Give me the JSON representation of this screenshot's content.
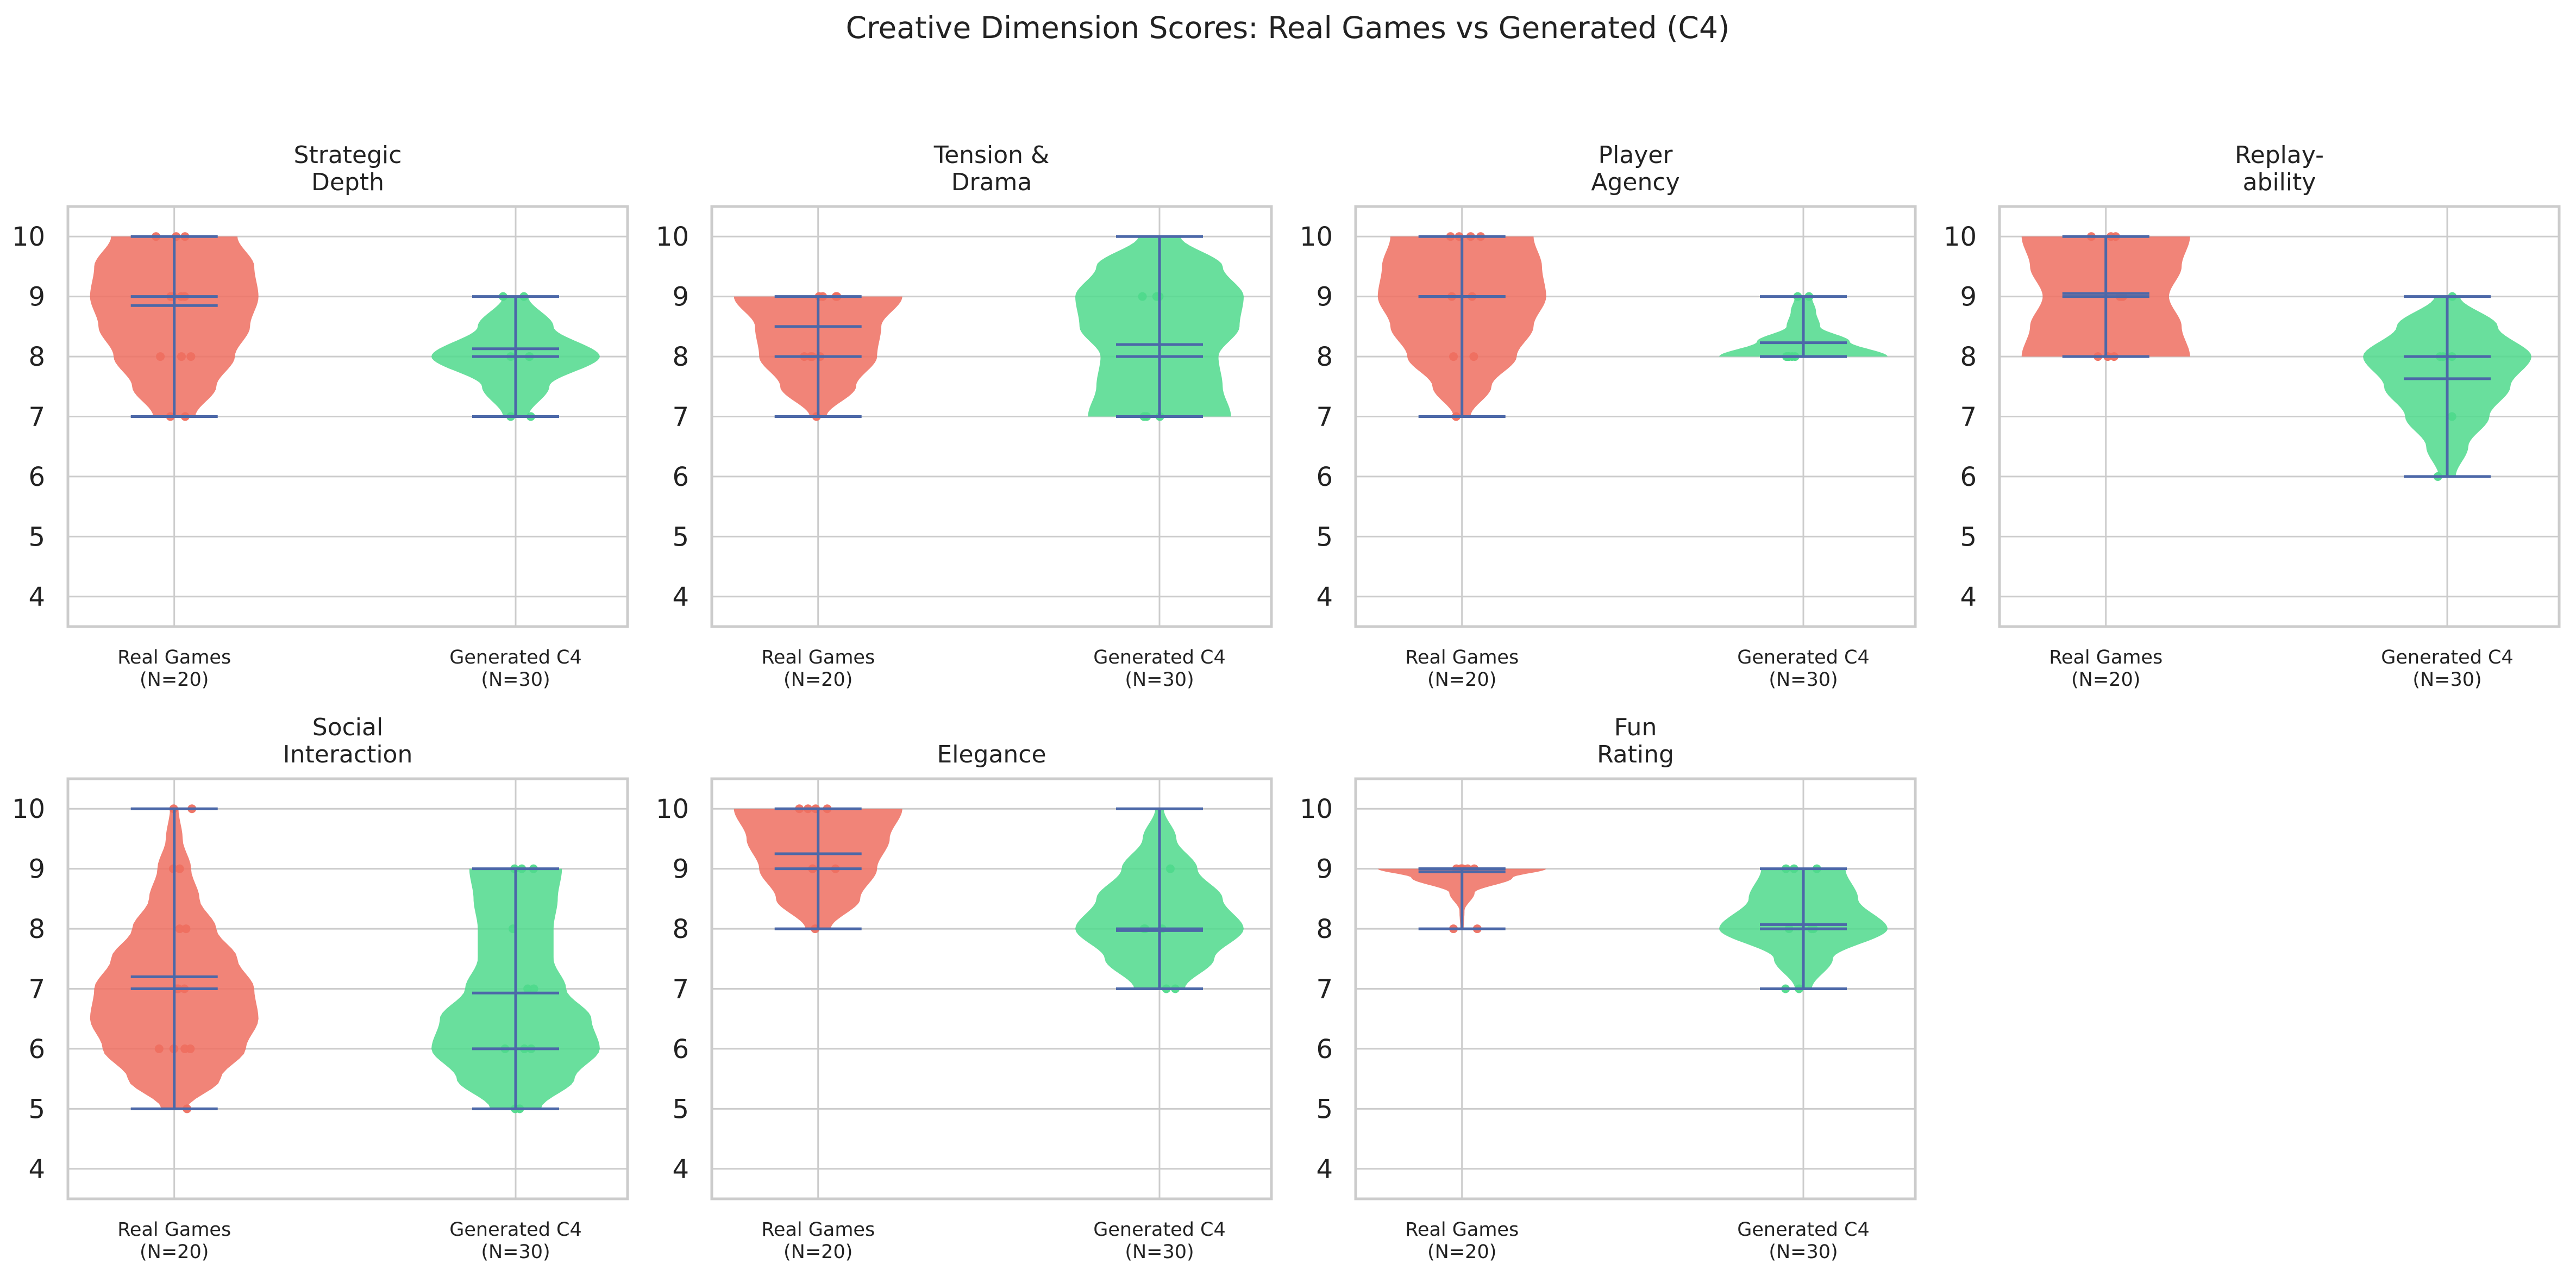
{
  "figure_title": "Creative Dimension Scores: Real Games vs Generated (C4)",
  "colors": {
    "real": "#ee6f60",
    "generated": "#4fd98c",
    "stat_lines": "#4c68a8",
    "grid": "#cccccc",
    "frame": "#cccccc"
  },
  "chart_data": [
    {
      "type": "violin",
      "title": "Strategic\nDepth",
      "categories": [
        "Real Games\n(N=20)",
        "Generated C4\n(N=30)"
      ],
      "ylim": [
        3.5,
        10.5
      ],
      "yticks": [
        4,
        5,
        6,
        7,
        8,
        9,
        10
      ],
      "grid": true,
      "series": [
        {
          "name": "Real Games",
          "min": 7,
          "max": 10,
          "mean": 8.85,
          "median": 9,
          "density": [
            [
              7,
              0.25
            ],
            [
              7.5,
              0.5
            ],
            [
              8,
              0.72
            ],
            [
              8.5,
              0.9
            ],
            [
              9,
              1.0
            ],
            [
              9.5,
              0.95
            ],
            [
              10,
              0.75
            ]
          ],
          "points": [
            7,
            7,
            8,
            8,
            8,
            9,
            9,
            9,
            9,
            10,
            10,
            10
          ]
        },
        {
          "name": "Generated C4",
          "min": 7,
          "max": 9,
          "mean": 8.13,
          "median": 8,
          "density": [
            [
              7,
              0.15
            ],
            [
              7.5,
              0.4
            ],
            [
              8,
              1.0
            ],
            [
              8.5,
              0.45
            ],
            [
              9,
              0.15
            ]
          ],
          "points": [
            7,
            7,
            8,
            8,
            8,
            9,
            9
          ]
        }
      ]
    },
    {
      "type": "violin",
      "title": "Tension &\nDrama",
      "categories": [
        "Real Games\n(N=20)",
        "Generated C4\n(N=30)"
      ],
      "ylim": [
        3.5,
        10.5
      ],
      "yticks": [
        4,
        5,
        6,
        7,
        8,
        9,
        10
      ],
      "grid": true,
      "series": [
        {
          "name": "Real Games",
          "min": 7,
          "max": 9,
          "mean": 8.5,
          "median": 8,
          "density": [
            [
              7,
              0.1
            ],
            [
              7.5,
              0.45
            ],
            [
              8,
              0.7
            ],
            [
              8.5,
              0.75
            ],
            [
              9,
              1.0
            ]
          ],
          "points": [
            7,
            8,
            8,
            8,
            8,
            9,
            9,
            9,
            9
          ]
        },
        {
          "name": "Generated C4",
          "min": 7,
          "max": 10,
          "mean": 8.2,
          "median": 8,
          "density": [
            [
              7,
              0.85
            ],
            [
              7.5,
              0.75
            ],
            [
              8,
              0.7
            ],
            [
              8.5,
              0.95
            ],
            [
              9,
              1.0
            ],
            [
              9.5,
              0.75
            ],
            [
              10,
              0.25
            ]
          ],
          "points": [
            7,
            7,
            7,
            9,
            9,
            9
          ]
        }
      ]
    },
    {
      "type": "violin",
      "title": "Player\nAgency",
      "categories": [
        "Real Games\n(N=20)",
        "Generated C4\n(N=30)"
      ],
      "ylim": [
        3.5,
        10.5
      ],
      "yticks": [
        4,
        5,
        6,
        7,
        8,
        9,
        10
      ],
      "grid": true,
      "series": [
        {
          "name": "Real Games",
          "min": 7,
          "max": 10,
          "mean": 9.0,
          "median": 9,
          "density": [
            [
              7,
              0.1
            ],
            [
              7.5,
              0.35
            ],
            [
              8,
              0.65
            ],
            [
              8.5,
              0.85
            ],
            [
              9,
              1.0
            ],
            [
              9.5,
              0.95
            ],
            [
              10,
              0.85
            ]
          ],
          "points": [
            7,
            8,
            8,
            9,
            9,
            10,
            10,
            10,
            10
          ]
        },
        {
          "name": "Generated C4",
          "min": 8,
          "max": 9,
          "mean": 8.23,
          "median": 8,
          "density": [
            [
              8,
              1.0
            ],
            [
              8.25,
              0.55
            ],
            [
              8.5,
              0.2
            ],
            [
              8.75,
              0.15
            ],
            [
              9,
              0.1
            ]
          ],
          "points": [
            8,
            8,
            8,
            8,
            8,
            9,
            9
          ]
        }
      ]
    },
    {
      "type": "violin",
      "title": "Replay-\nability",
      "categories": [
        "Real Games\n(N=20)",
        "Generated C4\n(N=30)"
      ],
      "ylim": [
        3.5,
        10.5
      ],
      "yticks": [
        4,
        5,
        6,
        7,
        8,
        9,
        10
      ],
      "grid": true,
      "series": [
        {
          "name": "Real Games",
          "min": 8,
          "max": 10,
          "mean": 9.05,
          "median": 9,
          "density": [
            [
              8,
              1.0
            ],
            [
              8.5,
              0.9
            ],
            [
              9,
              0.75
            ],
            [
              9.5,
              0.9
            ],
            [
              10,
              1.0
            ]
          ],
          "points": [
            8,
            8,
            8,
            9,
            9,
            9,
            10,
            10,
            10
          ]
        },
        {
          "name": "Generated C4",
          "min": 6,
          "max": 9,
          "mean": 7.63,
          "median": 8,
          "density": [
            [
              6,
              0.1
            ],
            [
              6.5,
              0.25
            ],
            [
              7,
              0.5
            ],
            [
              7.5,
              0.75
            ],
            [
              8,
              1.0
            ],
            [
              8.5,
              0.6
            ],
            [
              9,
              0.15
            ]
          ],
          "points": [
            6,
            7,
            8,
            8,
            8,
            9
          ]
        }
      ]
    },
    {
      "type": "violin",
      "title": "Social\nInteraction",
      "categories": [
        "Real Games\n(N=20)",
        "Generated C4\n(N=30)"
      ],
      "ylim": [
        3.5,
        10.5
      ],
      "yticks": [
        4,
        5,
        6,
        7,
        8,
        9,
        10
      ],
      "grid": true,
      "series": [
        {
          "name": "Real Games",
          "min": 5,
          "max": 10,
          "mean": 7.2,
          "median": 7,
          "density": [
            [
              5,
              0.15
            ],
            [
              5.5,
              0.55
            ],
            [
              6,
              0.85
            ],
            [
              6.5,
              1.0
            ],
            [
              7,
              0.95
            ],
            [
              7.5,
              0.75
            ],
            [
              8,
              0.5
            ],
            [
              8.5,
              0.3
            ],
            [
              9,
              0.2
            ],
            [
              9.5,
              0.1
            ],
            [
              10,
              0.05
            ]
          ],
          "points": [
            5,
            6,
            6,
            6,
            6,
            6,
            7,
            7,
            7,
            8,
            8,
            9,
            9,
            10,
            10
          ]
        },
        {
          "name": "Generated C4",
          "min": 5,
          "max": 9,
          "mean": 6.93,
          "median": 6,
          "density": [
            [
              5,
              0.3
            ],
            [
              5.5,
              0.7
            ],
            [
              6,
              1.0
            ],
            [
              6.5,
              0.9
            ],
            [
              7,
              0.6
            ],
            [
              7.5,
              0.45
            ],
            [
              8,
              0.45
            ],
            [
              8.5,
              0.5
            ],
            [
              9,
              0.55
            ]
          ],
          "points": [
            5,
            5,
            6,
            6,
            6,
            7,
            7,
            8,
            9,
            9,
            9
          ]
        }
      ]
    },
    {
      "type": "violin",
      "title": "Elegance",
      "categories": [
        "Real Games\n(N=20)",
        "Generated C4\n(N=30)"
      ],
      "ylim": [
        3.5,
        10.5
      ],
      "yticks": [
        4,
        5,
        6,
        7,
        8,
        9,
        10
      ],
      "grid": true,
      "series": [
        {
          "name": "Real Games",
          "min": 8,
          "max": 10,
          "mean": 9.25,
          "median": 9,
          "density": [
            [
              8,
              0.15
            ],
            [
              8.5,
              0.5
            ],
            [
              9,
              0.7
            ],
            [
              9.5,
              0.85
            ],
            [
              10,
              1.0
            ]
          ],
          "points": [
            8,
            9,
            9,
            9,
            10,
            10,
            10,
            10
          ]
        },
        {
          "name": "Generated C4",
          "min": 7,
          "max": 10,
          "mean": 7.97,
          "median": 8,
          "density": [
            [
              7,
              0.3
            ],
            [
              7.5,
              0.65
            ],
            [
              8,
              1.0
            ],
            [
              8.5,
              0.75
            ],
            [
              9,
              0.45
            ],
            [
              9.5,
              0.2
            ],
            [
              10,
              0.05
            ]
          ],
          "points": [
            7,
            7,
            8,
            8,
            8,
            9
          ]
        }
      ]
    },
    {
      "type": "violin",
      "title": "Fun\nRating",
      "categories": [
        "Real Games\n(N=20)",
        "Generated C4\n(N=30)"
      ],
      "ylim": [
        3.5,
        10.5
      ],
      "yticks": [
        4,
        5,
        6,
        7,
        8,
        9,
        10
      ],
      "grid": true,
      "series": [
        {
          "name": "Real Games",
          "min": 8,
          "max": 9,
          "mean": 8.95,
          "median": 9,
          "density": [
            [
              8,
              0.02
            ],
            [
              8.3,
              0.03
            ],
            [
              8.6,
              0.15
            ],
            [
              8.85,
              0.6
            ],
            [
              9,
              1.0
            ]
          ],
          "points": [
            8,
            8,
            9,
            9,
            9,
            9,
            9,
            9
          ]
        },
        {
          "name": "Generated C4",
          "min": 7,
          "max": 9,
          "mean": 8.07,
          "median": 8,
          "density": [
            [
              7,
              0.1
            ],
            [
              7.5,
              0.35
            ],
            [
              8,
              1.0
            ],
            [
              8.5,
              0.65
            ],
            [
              9,
              0.5
            ]
          ],
          "points": [
            7,
            7,
            8,
            8,
            8,
            9,
            9,
            9
          ]
        }
      ]
    }
  ]
}
